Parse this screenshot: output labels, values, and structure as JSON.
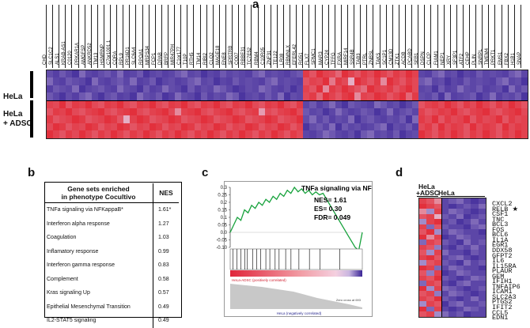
{
  "panel_labels": {
    "a": "a",
    "b": "b",
    "c": "c",
    "d": "d"
  },
  "panelA": {
    "row_labels": {
      "hela": "HeLa",
      "hela_adsc_1": "HeLa",
      "hela_adsc_2": "+ ADSC"
    },
    "genes": [
      "CHD",
      "SLC1C2",
      "ALS1",
      "KRAB-AS1",
      "C0120",
      "PRKAR1A",
      "AMGFSP",
      "ANKRD52",
      "TM13",
      "HSMRNP",
      "C7or1001.1",
      "CQRA",
      "RPL9",
      "PR16D1",
      "SLC6A4",
      "RPOA1",
      "MRPS34",
      "FCP1",
      "DPAB",
      "BRFP",
      "MIR47PH",
      "C1or177",
      "T10P",
      "RTH5",
      "TM14",
      "RIBI2",
      "CLQ2",
      "MAGE18",
      "ENE8",
      "SPRTRB",
      "CO07",
      "RBBE31",
      "TC7E52",
      "RBM4",
      "C10R05",
      "ZNF31",
      "TE122",
      "LR08",
      "RBMNLX",
      "EFERL42",
      "RG51",
      "FLX7",
      "SPMC1",
      "MAR3",
      "CYP24",
      "TFFG",
      "FXRA",
      "MIRF14",
      "SSR4B",
      "TAB3",
      "PTRL",
      "ZNBSL",
      "TAKS",
      "SC1P1",
      "CM13D",
      "ZTK1",
      "ACDB",
      "PCABD",
      "SEB1",
      "DSPN",
      "CLCP",
      "FIAM1",
      "NEP1",
      "XRY",
      "SF3P1",
      "ATF2",
      "CEHP",
      "PLIN",
      "SNRPL",
      "TMEM4",
      "PRKT1",
      "EMS1",
      "FBX2",
      "H1B1",
      "SNAP"
    ],
    "heatmap": [
      [
        0.12,
        0.08,
        0.15,
        0.1,
        0.05,
        0.2,
        0.1,
        0.08,
        0.12,
        0.15,
        0.1,
        0.2,
        0.08,
        0.1,
        0.15,
        0.05,
        0.1,
        0.12,
        0.08,
        0.1,
        0.15,
        0.2,
        0.1,
        0.12,
        0.05,
        0.1,
        0.08,
        0.15,
        0.1,
        0.12,
        0.1,
        0.08,
        0.15,
        0.2,
        0.1,
        0.12,
        0.1,
        0.08,
        0.12,
        0.15,
        0.92,
        0.85,
        0.95,
        0.9,
        0.88,
        0.8,
        0.95,
        0.9,
        0.85,
        0.92,
        0.88,
        0.95,
        0.9,
        0.85,
        0.92,
        0.88,
        0.95,
        0.9,
        0.1,
        0.08,
        0.15,
        0.2,
        0.1,
        0.12,
        0.05,
        0.1,
        0.08,
        0.15,
        0.1,
        0.12,
        0.1,
        0.08,
        0.15,
        0.2,
        0.1
      ],
      [
        0.2,
        0.1,
        0.08,
        0.15,
        0.12,
        0.1,
        0.05,
        0.2,
        0.1,
        0.08,
        0.12,
        0.15,
        0.1,
        0.2,
        0.08,
        0.1,
        0.15,
        0.05,
        0.1,
        0.12,
        0.08,
        0.1,
        0.15,
        0.2,
        0.1,
        0.12,
        0.05,
        0.1,
        0.08,
        0.15,
        0.1,
        0.12,
        0.1,
        0.08,
        0.15,
        0.2,
        0.1,
        0.12,
        0.1,
        0.08,
        0.85,
        0.9,
        0.88,
        0.95,
        0.75,
        0.92,
        0.88,
        0.6,
        0.95,
        0.9,
        0.85,
        0.92,
        0.7,
        0.95,
        0.9,
        0.85,
        0.92,
        0.88,
        0.15,
        0.2,
        0.1,
        0.12,
        0.05,
        0.1,
        0.08,
        0.15,
        0.1,
        0.12,
        0.1,
        0.08,
        0.15,
        0.2,
        0.1,
        0.12,
        0.05
      ],
      [
        0.08,
        0.15,
        0.12,
        0.1,
        0.2,
        0.05,
        0.1,
        0.12,
        0.15,
        0.1,
        0.08,
        0.2,
        0.12,
        0.1,
        0.05,
        0.15,
        0.08,
        0.1,
        0.2,
        0.12,
        0.1,
        0.05,
        0.15,
        0.08,
        0.12,
        0.1,
        0.2,
        0.15,
        0.1,
        0.05,
        0.08,
        0.12,
        0.1,
        0.2,
        0.15,
        0.1,
        0.08,
        0.12,
        0.05,
        0.1,
        0.9,
        0.85,
        0.95,
        0.7,
        0.92,
        0.88,
        0.95,
        0.9,
        0.85,
        0.78,
        0.95,
        0.9,
        0.88,
        0.92,
        0.85,
        0.9,
        0.95,
        0.88,
        0.1,
        0.12,
        0.05,
        0.15,
        0.08,
        0.1,
        0.2,
        0.12,
        0.1,
        0.15,
        0.08,
        0.1,
        0.12,
        0.05,
        0.2,
        0.1,
        0.15
      ],
      [
        0.15,
        0.1,
        0.05,
        0.12,
        0.08,
        0.15,
        0.2,
        0.1,
        0.05,
        0.12,
        0.15,
        0.08,
        0.1,
        0.05,
        0.2,
        0.12,
        0.1,
        0.15,
        0.05,
        0.08,
        0.2,
        0.12,
        0.1,
        0.05,
        0.15,
        0.08,
        0.12,
        0.1,
        0.2,
        0.15,
        0.05,
        0.1,
        0.12,
        0.08,
        0.15,
        0.1,
        0.2,
        0.05,
        0.12,
        0.1,
        0.88,
        0.92,
        0.8,
        0.95,
        0.9,
        0.85,
        0.92,
        0.95,
        0.7,
        0.9,
        0.88,
        0.95,
        0.92,
        0.85,
        0.9,
        0.95,
        0.8,
        0.92,
        0.12,
        0.1,
        0.15,
        0.05,
        0.2,
        0.08,
        0.1,
        0.12,
        0.15,
        0.05,
        0.1,
        0.2,
        0.08,
        0.12,
        0.1,
        0.15,
        0.05
      ],
      [
        0.9,
        0.88,
        0.95,
        0.85,
        0.92,
        0.9,
        0.95,
        0.88,
        0.85,
        0.92,
        0.9,
        0.95,
        0.88,
        0.85,
        0.92,
        0.9,
        0.95,
        0.88,
        0.85,
        0.92,
        0.9,
        0.95,
        0.88,
        0.85,
        0.92,
        0.9,
        0.95,
        0.88,
        0.85,
        0.92,
        0.9,
        0.95,
        0.88,
        0.85,
        0.92,
        0.9,
        0.95,
        0.88,
        0.85,
        0.92,
        0.1,
        0.15,
        0.08,
        0.12,
        0.2,
        0.1,
        0.05,
        0.15,
        0.12,
        0.1,
        0.08,
        0.2,
        0.15,
        0.1,
        0.12,
        0.05,
        0.1,
        0.15,
        0.85,
        0.9,
        0.92,
        0.88,
        0.95,
        0.9,
        0.85,
        0.92,
        0.88,
        0.95,
        0.9,
        0.85,
        0.92,
        0.88,
        0.95,
        0.9,
        0.85
      ],
      [
        0.85,
        0.92,
        0.9,
        0.95,
        0.88,
        0.85,
        0.9,
        0.92,
        0.95,
        0.88,
        0.85,
        0.9,
        0.92,
        0.95,
        0.88,
        0.85,
        0.9,
        0.92,
        0.95,
        0.88,
        0.7,
        0.9,
        0.92,
        0.95,
        0.88,
        0.85,
        0.9,
        0.92,
        0.95,
        0.88,
        0.85,
        0.9,
        0.92,
        0.65,
        0.88,
        0.85,
        0.9,
        0.92,
        0.95,
        0.88,
        0.15,
        0.1,
        0.12,
        0.05,
        0.1,
        0.2,
        0.12,
        0.08,
        0.1,
        0.15,
        0.12,
        0.05,
        0.1,
        0.2,
        0.08,
        0.12,
        0.15,
        0.1,
        0.9,
        0.85,
        0.88,
        0.92,
        0.9,
        0.95,
        0.88,
        0.85,
        0.9,
        0.92,
        0.95,
        0.88,
        0.85,
        0.9,
        0.92,
        0.95,
        0.88
      ],
      [
        0.92,
        0.85,
        0.88,
        0.9,
        0.95,
        0.92,
        0.85,
        0.88,
        0.9,
        0.95,
        0.92,
        0.85,
        0.6,
        0.9,
        0.95,
        0.92,
        0.85,
        0.88,
        0.9,
        0.95,
        0.92,
        0.85,
        0.88,
        0.9,
        0.95,
        0.92,
        0.85,
        0.88,
        0.9,
        0.95,
        0.92,
        0.85,
        0.88,
        0.9,
        0.95,
        0.92,
        0.85,
        0.88,
        0.9,
        0.95,
        0.12,
        0.2,
        0.1,
        0.15,
        0.08,
        0.12,
        0.1,
        0.2,
        0.05,
        0.12,
        0.15,
        0.1,
        0.08,
        0.12,
        0.1,
        0.15,
        0.05,
        0.2,
        0.92,
        0.88,
        0.95,
        0.85,
        0.92,
        0.88,
        0.9,
        0.95,
        0.85,
        0.92,
        0.88,
        0.9,
        0.95,
        0.85,
        0.92,
        0.88,
        0.9
      ],
      [
        0.88,
        0.95,
        0.92,
        0.85,
        0.9,
        0.88,
        0.95,
        0.92,
        0.85,
        0.9,
        0.88,
        0.95,
        0.92,
        0.85,
        0.9,
        0.88,
        0.95,
        0.92,
        0.85,
        0.9,
        0.88,
        0.95,
        0.92,
        0.85,
        0.9,
        0.88,
        0.95,
        0.92,
        0.85,
        0.9,
        0.88,
        0.95,
        0.92,
        0.85,
        0.9,
        0.88,
        0.95,
        0.92,
        0.85,
        0.9,
        0.05,
        0.12,
        0.15,
        0.1,
        0.2,
        0.05,
        0.15,
        0.1,
        0.12,
        0.08,
        0.1,
        0.15,
        0.2,
        0.05,
        0.12,
        0.1,
        0.15,
        0.08,
        0.88,
        0.92,
        0.85,
        0.95,
        0.88,
        0.92,
        0.9,
        0.85,
        0.95,
        0.88,
        0.92,
        0.9,
        0.85,
        0.95,
        0.88,
        0.92,
        0.9
      ],
      [
        0.95,
        0.9,
        0.85,
        0.92,
        0.88,
        0.95,
        0.9,
        0.85,
        0.92,
        0.88,
        0.95,
        0.9,
        0.85,
        0.92,
        0.88,
        0.95,
        0.9,
        0.85,
        0.92,
        0.88,
        0.95,
        0.9,
        0.85,
        0.92,
        0.88,
        0.95,
        0.9,
        0.85,
        0.92,
        0.88,
        0.95,
        0.9,
        0.85,
        0.92,
        0.88,
        0.95,
        0.9,
        0.85,
        0.92,
        0.88,
        0.1,
        0.08,
        0.12,
        0.2,
        0.15,
        0.1,
        0.08,
        0.12,
        0.05,
        0.15,
        0.2,
        0.1,
        0.12,
        0.08,
        0.15,
        0.05,
        0.1,
        0.12,
        0.95,
        0.9,
        0.85,
        0.92,
        0.88,
        0.95,
        0.9,
        0.85,
        0.92,
        0.88,
        0.95,
        0.9,
        0.85,
        0.92,
        0.88,
        0.95,
        0.9
      ]
    ]
  },
  "panelB": {
    "header_left": "Gene sets enriched\nin phenotype Cocultivo",
    "header_right": "NES",
    "rows": [
      {
        "name": "TNFa signaling via NFKappaB*",
        "nes": "1.61*"
      },
      {
        "name": "Interferon alpha response",
        "nes": "1.27"
      },
      {
        "name": "Coagulation",
        "nes": "1.03"
      },
      {
        "name": "Inflamatory response",
        "nes": "0.99"
      },
      {
        "name": "Interferon gamma response",
        "nes": "0.83"
      },
      {
        "name": "Complement",
        "nes": "0.58"
      },
      {
        "name": "Kras signaling Up",
        "nes": "0.57"
      },
      {
        "name": "Epithelial Mesenchymal Transition",
        "nes": "0.49"
      },
      {
        "name": "IL2-STAT5 signaling",
        "nes": "0.49"
      }
    ]
  },
  "panelC": {
    "title": "TNFa signaling via NF-kB",
    "stats": {
      "nes": "NES= 1.61",
      "es": "ES= 0.30",
      "fdr": "FDR= 0.049"
    },
    "y_ticks": [
      "0.3",
      "0.25",
      "0.2",
      "0.15",
      "0.1",
      "0.05",
      "0.0",
      "-0.05",
      "-0.10"
    ],
    "positive_label": "HeLa-ADSC (positively correlated)",
    "negative_label": "HeLa (negatively correlated)",
    "zero_cross_label": "Zero cross at 693",
    "es_curve": [
      0.0,
      0.05,
      0.1,
      0.08,
      0.15,
      0.13,
      0.18,
      0.16,
      0.2,
      0.18,
      0.22,
      0.2,
      0.24,
      0.22,
      0.26,
      0.24,
      0.28,
      0.26,
      0.3,
      0.27,
      0.29,
      0.26,
      0.28,
      0.25,
      0.27,
      0.25,
      0.26,
      0.22,
      0.18,
      0.14,
      0.1,
      0.06,
      0.02,
      -0.02,
      -0.06,
      -0.1,
      -0.12,
      0.0
    ],
    "hit_positions": [
      0.02,
      0.05,
      0.08,
      0.11,
      0.13,
      0.17,
      0.2,
      0.23,
      0.27,
      0.3,
      0.34,
      0.37,
      0.42,
      0.46,
      0.52,
      0.6,
      0.68,
      0.83
    ]
  },
  "panelD": {
    "col_label_adsc_1": "HeLa",
    "col_label_adsc_2": "+ADSC",
    "col_label_hela": "HeLa",
    "genes": [
      "CXCL2",
      "RELB",
      "CSF1",
      "TNC",
      "BCL3",
      "FOS",
      "BCL6",
      "IL1A",
      "EGR1",
      "DDX58",
      "GFPT2",
      "IL6",
      "IL15RA",
      "PLAUR",
      "GEM",
      "IFIH1",
      "TNFAIP6",
      "ICAM1",
      "SLC2A3",
      "PTGS2",
      "IFIT2",
      "CCL5",
      "EDN1"
    ],
    "star": "★",
    "star_gene_index": 1,
    "heatmap": [
      [
        0.9,
        0.85,
        0.7,
        0.1,
        0.15,
        0.2,
        0.1,
        0.05,
        0.1
      ],
      [
        0.95,
        0.9,
        0.85,
        0.1,
        0.05,
        0.1,
        0.15,
        0.1,
        0.2
      ],
      [
        0.7,
        0.3,
        0.9,
        0.1,
        0.2,
        0.15,
        0.1,
        0.05,
        0.1
      ],
      [
        0.85,
        0.9,
        0.6,
        0.15,
        0.1,
        0.2,
        0.05,
        0.1,
        0.15
      ],
      [
        0.3,
        0.9,
        0.95,
        0.1,
        0.15,
        0.05,
        0.1,
        0.2,
        0.1
      ],
      [
        0.9,
        0.2,
        0.85,
        0.15,
        0.1,
        0.1,
        0.05,
        0.15,
        0.2
      ],
      [
        0.85,
        0.95,
        0.3,
        0.1,
        0.2,
        0.15,
        0.1,
        0.1,
        0.05
      ],
      [
        0.95,
        0.7,
        0.9,
        0.05,
        0.1,
        0.2,
        0.15,
        0.1,
        0.1
      ],
      [
        0.2,
        0.9,
        0.85,
        0.15,
        0.1,
        0.05,
        0.2,
        0.1,
        0.15
      ],
      [
        0.9,
        0.85,
        0.25,
        0.1,
        0.05,
        0.15,
        0.1,
        0.2,
        0.1
      ],
      [
        0.85,
        0.3,
        0.9,
        0.2,
        0.1,
        0.1,
        0.05,
        0.15,
        0.1
      ],
      [
        0.9,
        0.95,
        0.85,
        0.1,
        0.15,
        0.2,
        0.1,
        0.05,
        0.1
      ],
      [
        0.3,
        0.85,
        0.9,
        0.15,
        0.1,
        0.05,
        0.2,
        0.1,
        0.15
      ],
      [
        0.95,
        0.9,
        0.2,
        0.1,
        0.2,
        0.15,
        0.1,
        0.1,
        0.05
      ],
      [
        0.85,
        0.25,
        0.9,
        0.05,
        0.1,
        0.2,
        0.15,
        0.1,
        0.1
      ],
      [
        0.9,
        0.85,
        0.95,
        0.15,
        0.1,
        0.05,
        0.1,
        0.2,
        0.15
      ],
      [
        0.2,
        0.9,
        0.85,
        0.1,
        0.05,
        0.15,
        0.2,
        0.1,
        0.1
      ],
      [
        0.95,
        0.3,
        0.9,
        0.2,
        0.15,
        0.1,
        0.05,
        0.1,
        0.15
      ],
      [
        0.85,
        0.9,
        0.25,
        0.1,
        0.2,
        0.15,
        0.1,
        0.05,
        0.1
      ],
      [
        0.9,
        0.85,
        0.95,
        0.15,
        0.1,
        0.05,
        0.1,
        0.2,
        0.1
      ],
      [
        0.3,
        0.9,
        0.85,
        0.05,
        0.15,
        0.2,
        0.1,
        0.1,
        0.15
      ],
      [
        0.95,
        0.2,
        0.9,
        0.1,
        0.05,
        0.1,
        0.2,
        0.15,
        0.1
      ],
      [
        0.85,
        0.9,
        0.3,
        0.2,
        0.1,
        0.15,
        0.05,
        0.1,
        0.1
      ]
    ]
  }
}
